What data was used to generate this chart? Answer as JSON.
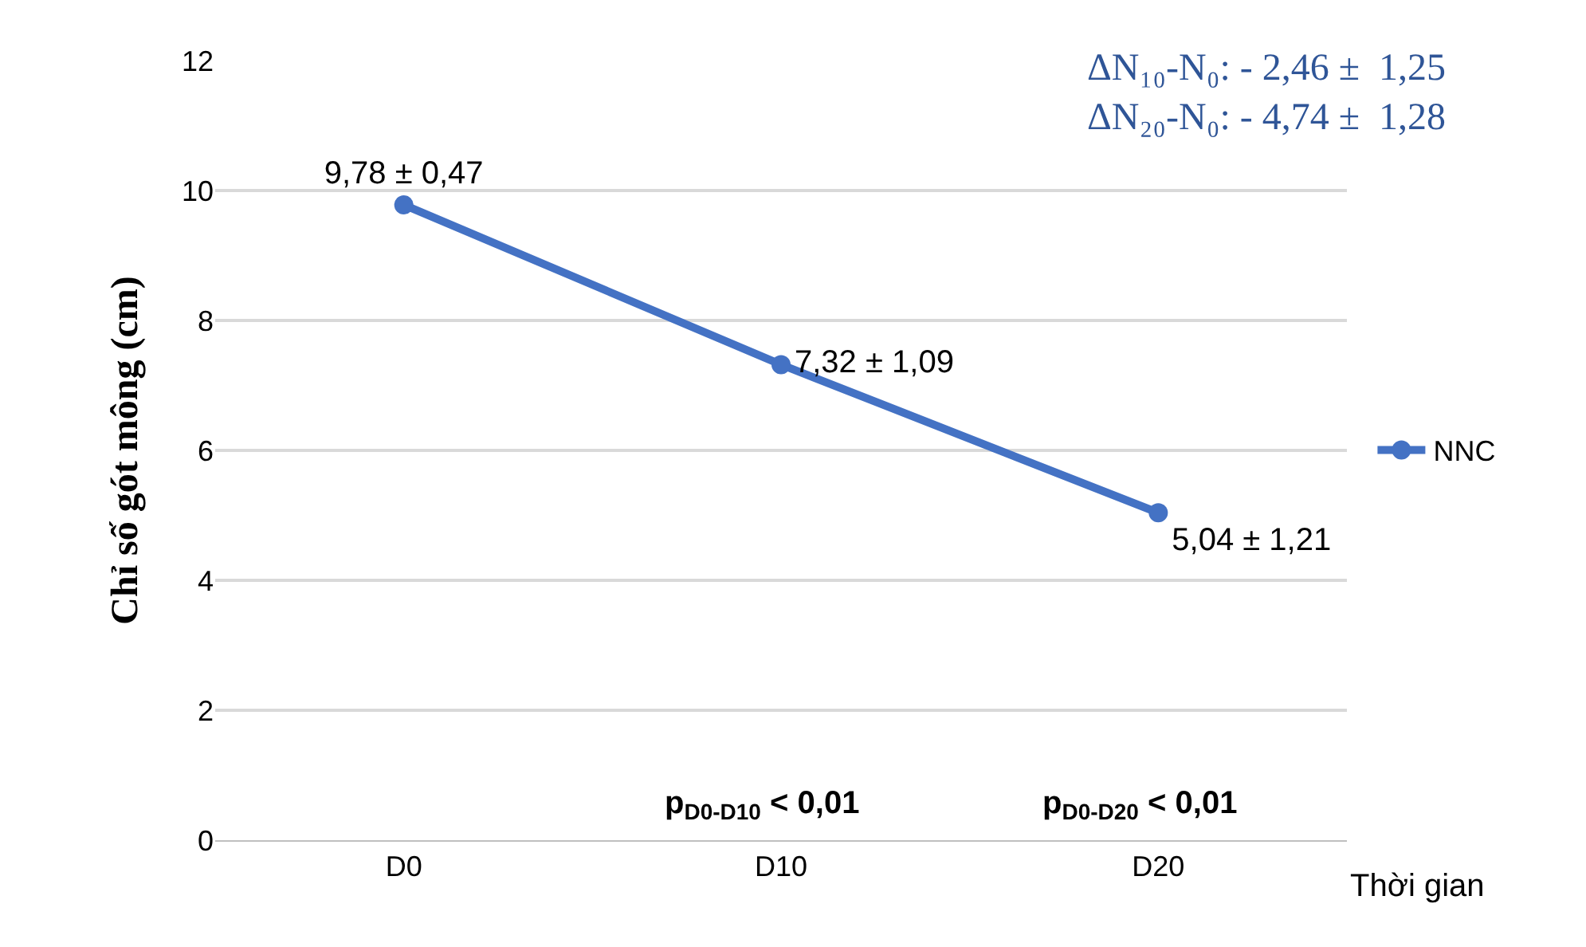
{
  "chart_data": {
    "type": "line",
    "ylabel": "Chỉ số gót mông (cm)",
    "xlabel": "Thời gian",
    "categories": [
      "D0",
      "D10",
      "D20"
    ],
    "series": [
      {
        "name": "NNC",
        "color": "#4472c4",
        "values": [
          9.78,
          7.32,
          5.04
        ],
        "value_labels": [
          "9,78 ± 0,47",
          "7,32 ± 1,09",
          "5,04 ± 1,21"
        ]
      }
    ],
    "ylim": [
      0,
      12
    ],
    "yticks": [
      0,
      2,
      4,
      6,
      8,
      10,
      12
    ],
    "grid": "y",
    "legend": "right",
    "marker": "circle",
    "line_style": "solid",
    "annotations": [
      "ΔN₁₀-N₀: - 2,46 ±  1,25\nΔN₂₀-N₀: - 4,74 ±  1,28",
      "p$_{D0-D10}$ < 0,01",
      "p$_{D0-D20}$ < 0,01"
    ]
  }
}
